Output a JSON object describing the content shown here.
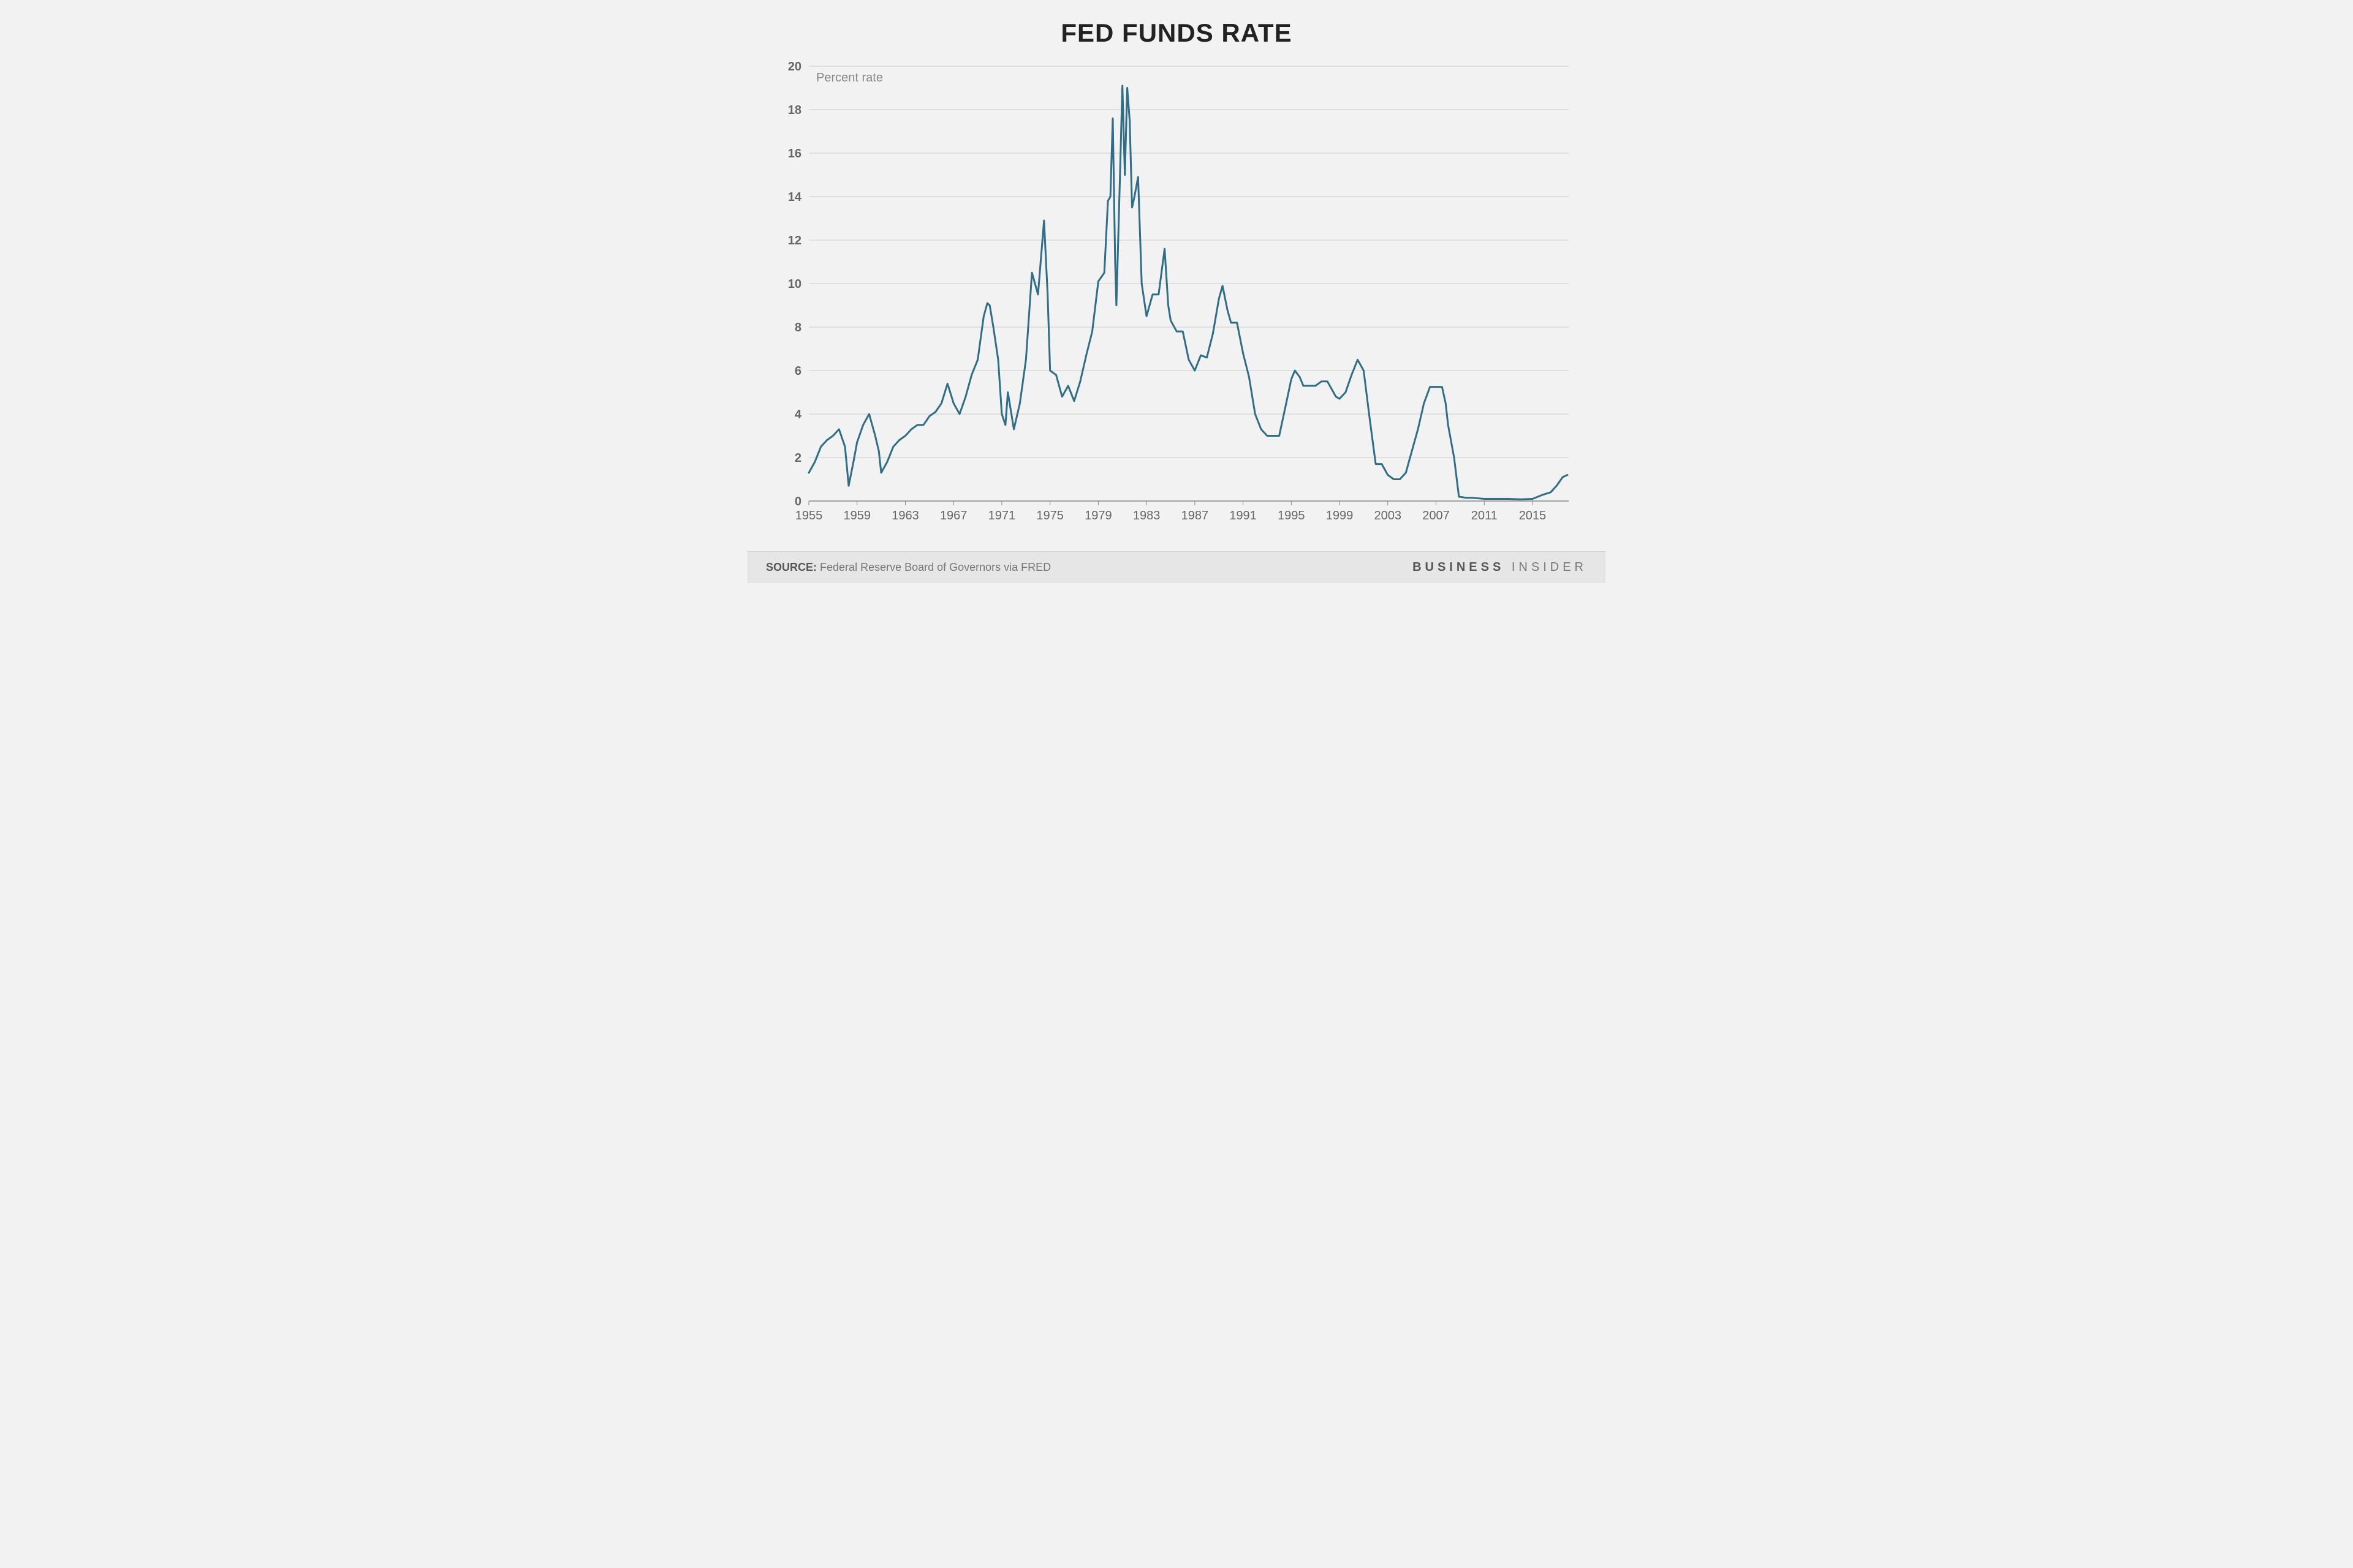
{
  "chart": {
    "type": "line",
    "title": "FED FUNDS RATE",
    "y_axis_sublabel": "Percent rate",
    "source_prefix": "SOURCE:",
    "source_text": "Federal Reserve Board of Governors via FRED",
    "brand_bold": "BUSINESS",
    "brand_light": "INSIDER",
    "background_color": "#f2f2f2",
    "plot_background": "#f2f2f2",
    "footer_background": "#e6e6e6",
    "line_color": "#2f6e86",
    "line_width": 3,
    "grid_color": "#cccccc",
    "axis_color": "#888888",
    "tick_label_color": "#666666",
    "tick_fontsize": 20,
    "title_fontsize": 42,
    "title_color": "#222222",
    "sublabel_color": "#888888",
    "x": {
      "min": 1955,
      "max": 2018,
      "tick_step": 4,
      "ticks": [
        1955,
        1959,
        1963,
        1967,
        1971,
        1975,
        1979,
        1983,
        1987,
        1991,
        1995,
        1999,
        2003,
        2007,
        2011,
        2015
      ]
    },
    "y": {
      "min": 0,
      "max": 20,
      "tick_step": 2,
      "ticks": [
        0,
        2,
        4,
        6,
        8,
        10,
        12,
        14,
        16,
        18,
        20
      ]
    },
    "series": [
      {
        "x": 1955.0,
        "y": 1.3
      },
      {
        "x": 1955.5,
        "y": 1.8
      },
      {
        "x": 1956.0,
        "y": 2.5
      },
      {
        "x": 1956.5,
        "y": 2.8
      },
      {
        "x": 1957.0,
        "y": 3.0
      },
      {
        "x": 1957.5,
        "y": 3.3
      },
      {
        "x": 1958.0,
        "y": 2.5
      },
      {
        "x": 1958.3,
        "y": 0.7
      },
      {
        "x": 1958.7,
        "y": 1.8
      },
      {
        "x": 1959.0,
        "y": 2.7
      },
      {
        "x": 1959.5,
        "y": 3.5
      },
      {
        "x": 1960.0,
        "y": 4.0
      },
      {
        "x": 1960.5,
        "y": 3.0
      },
      {
        "x": 1960.8,
        "y": 2.3
      },
      {
        "x": 1961.0,
        "y": 1.3
      },
      {
        "x": 1961.5,
        "y": 1.8
      },
      {
        "x": 1962.0,
        "y": 2.5
      },
      {
        "x": 1962.5,
        "y": 2.8
      },
      {
        "x": 1963.0,
        "y": 3.0
      },
      {
        "x": 1963.5,
        "y": 3.3
      },
      {
        "x": 1964.0,
        "y": 3.5
      },
      {
        "x": 1964.5,
        "y": 3.5
      },
      {
        "x": 1965.0,
        "y": 3.9
      },
      {
        "x": 1965.5,
        "y": 4.1
      },
      {
        "x": 1966.0,
        "y": 4.5
      },
      {
        "x": 1966.5,
        "y": 5.4
      },
      {
        "x": 1967.0,
        "y": 4.5
      },
      {
        "x": 1967.5,
        "y": 4.0
      },
      {
        "x": 1968.0,
        "y": 4.8
      },
      {
        "x": 1968.5,
        "y": 5.8
      },
      {
        "x": 1969.0,
        "y": 6.5
      },
      {
        "x": 1969.5,
        "y": 8.5
      },
      {
        "x": 1969.8,
        "y": 9.1
      },
      {
        "x": 1970.0,
        "y": 9.0
      },
      {
        "x": 1970.3,
        "y": 8.0
      },
      {
        "x": 1970.7,
        "y": 6.5
      },
      {
        "x": 1971.0,
        "y": 4.0
      },
      {
        "x": 1971.3,
        "y": 3.5
      },
      {
        "x": 1971.5,
        "y": 5.0
      },
      {
        "x": 1972.0,
        "y": 3.3
      },
      {
        "x": 1972.5,
        "y": 4.5
      },
      {
        "x": 1973.0,
        "y": 6.5
      },
      {
        "x": 1973.5,
        "y": 10.5
      },
      {
        "x": 1974.0,
        "y": 9.5
      },
      {
        "x": 1974.5,
        "y": 12.9
      },
      {
        "x": 1974.8,
        "y": 9.5
      },
      {
        "x": 1975.0,
        "y": 6.0
      },
      {
        "x": 1975.5,
        "y": 5.8
      },
      {
        "x": 1976.0,
        "y": 4.8
      },
      {
        "x": 1976.5,
        "y": 5.3
      },
      {
        "x": 1977.0,
        "y": 4.6
      },
      {
        "x": 1977.5,
        "y": 5.5
      },
      {
        "x": 1978.0,
        "y": 6.7
      },
      {
        "x": 1978.5,
        "y": 7.8
      },
      {
        "x": 1979.0,
        "y": 10.1
      },
      {
        "x": 1979.5,
        "y": 10.5
      },
      {
        "x": 1979.8,
        "y": 13.8
      },
      {
        "x": 1980.0,
        "y": 14.0
      },
      {
        "x": 1980.2,
        "y": 17.6
      },
      {
        "x": 1980.4,
        "y": 11.0
      },
      {
        "x": 1980.5,
        "y": 9.0
      },
      {
        "x": 1980.8,
        "y": 15.0
      },
      {
        "x": 1981.0,
        "y": 19.1
      },
      {
        "x": 1981.2,
        "y": 15.0
      },
      {
        "x": 1981.4,
        "y": 19.0
      },
      {
        "x": 1981.6,
        "y": 17.5
      },
      {
        "x": 1981.8,
        "y": 13.5
      },
      {
        "x": 1982.0,
        "y": 14.0
      },
      {
        "x": 1982.3,
        "y": 14.9
      },
      {
        "x": 1982.6,
        "y": 10.0
      },
      {
        "x": 1983.0,
        "y": 8.5
      },
      {
        "x": 1983.5,
        "y": 9.5
      },
      {
        "x": 1984.0,
        "y": 9.5
      },
      {
        "x": 1984.5,
        "y": 11.6
      },
      {
        "x": 1984.8,
        "y": 9.0
      },
      {
        "x": 1985.0,
        "y": 8.3
      },
      {
        "x": 1985.5,
        "y": 7.8
      },
      {
        "x": 1986.0,
        "y": 7.8
      },
      {
        "x": 1986.5,
        "y": 6.5
      },
      {
        "x": 1987.0,
        "y": 6.0
      },
      {
        "x": 1987.5,
        "y": 6.7
      },
      {
        "x": 1988.0,
        "y": 6.6
      },
      {
        "x": 1988.5,
        "y": 7.7
      },
      {
        "x": 1989.0,
        "y": 9.3
      },
      {
        "x": 1989.3,
        "y": 9.9
      },
      {
        "x": 1989.7,
        "y": 8.8
      },
      {
        "x": 1990.0,
        "y": 8.2
      },
      {
        "x": 1990.5,
        "y": 8.2
      },
      {
        "x": 1991.0,
        "y": 6.8
      },
      {
        "x": 1991.5,
        "y": 5.7
      },
      {
        "x": 1992.0,
        "y": 4.0
      },
      {
        "x": 1992.5,
        "y": 3.3
      },
      {
        "x": 1993.0,
        "y": 3.0
      },
      {
        "x": 1993.5,
        "y": 3.0
      },
      {
        "x": 1994.0,
        "y": 3.0
      },
      {
        "x": 1994.5,
        "y": 4.3
      },
      {
        "x": 1995.0,
        "y": 5.6
      },
      {
        "x": 1995.3,
        "y": 6.0
      },
      {
        "x": 1995.7,
        "y": 5.7
      },
      {
        "x": 1996.0,
        "y": 5.3
      },
      {
        "x": 1996.5,
        "y": 5.3
      },
      {
        "x": 1997.0,
        "y": 5.3
      },
      {
        "x": 1997.5,
        "y": 5.5
      },
      {
        "x": 1998.0,
        "y": 5.5
      },
      {
        "x": 1998.7,
        "y": 4.8
      },
      {
        "x": 1999.0,
        "y": 4.7
      },
      {
        "x": 1999.5,
        "y": 5.0
      },
      {
        "x": 2000.0,
        "y": 5.8
      },
      {
        "x": 2000.5,
        "y": 6.5
      },
      {
        "x": 2001.0,
        "y": 6.0
      },
      {
        "x": 2001.5,
        "y": 3.8
      },
      {
        "x": 2002.0,
        "y": 1.7
      },
      {
        "x": 2002.5,
        "y": 1.7
      },
      {
        "x": 2003.0,
        "y": 1.2
      },
      {
        "x": 2003.5,
        "y": 1.0
      },
      {
        "x": 2004.0,
        "y": 1.0
      },
      {
        "x": 2004.5,
        "y": 1.3
      },
      {
        "x": 2005.0,
        "y": 2.3
      },
      {
        "x": 2005.5,
        "y": 3.3
      },
      {
        "x": 2006.0,
        "y": 4.5
      },
      {
        "x": 2006.5,
        "y": 5.25
      },
      {
        "x": 2007.0,
        "y": 5.25
      },
      {
        "x": 2007.5,
        "y": 5.25
      },
      {
        "x": 2007.8,
        "y": 4.5
      },
      {
        "x": 2008.0,
        "y": 3.5
      },
      {
        "x": 2008.5,
        "y": 2.0
      },
      {
        "x": 2008.9,
        "y": 0.2
      },
      {
        "x": 2009.5,
        "y": 0.15
      },
      {
        "x": 2010.0,
        "y": 0.15
      },
      {
        "x": 2011.0,
        "y": 0.1
      },
      {
        "x": 2012.0,
        "y": 0.1
      },
      {
        "x": 2013.0,
        "y": 0.1
      },
      {
        "x": 2014.0,
        "y": 0.08
      },
      {
        "x": 2015.0,
        "y": 0.1
      },
      {
        "x": 2015.9,
        "y": 0.3
      },
      {
        "x": 2016.5,
        "y": 0.4
      },
      {
        "x": 2017.0,
        "y": 0.7
      },
      {
        "x": 2017.5,
        "y": 1.1
      },
      {
        "x": 2017.9,
        "y": 1.2
      }
    ]
  }
}
